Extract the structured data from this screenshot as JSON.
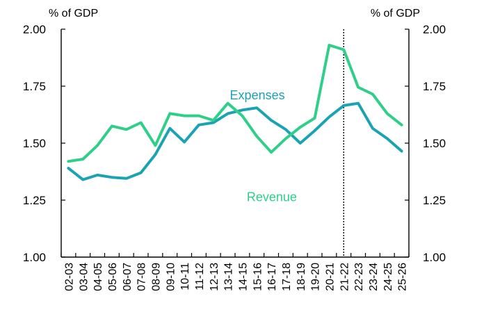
{
  "chart_data": {
    "type": "line",
    "left_axis_unit": "% of GDP",
    "right_axis_unit": "% of GDP",
    "ylim": [
      1.0,
      2.0
    ],
    "yticks": [
      "1.00",
      "1.25",
      "1.50",
      "1.75",
      "2.00"
    ],
    "categories": [
      "02-03",
      "03-04",
      "04-05",
      "05-06",
      "06-07",
      "07-08",
      "08-09",
      "09-10",
      "10-11",
      "11-12",
      "12-13",
      "13-14",
      "14-15",
      "15-16",
      "16-17",
      "17-18",
      "18-19",
      "19-20",
      "20-21",
      "21-22",
      "22-23",
      "23-24",
      "24-25",
      "25-26"
    ],
    "divider_after": "21-22",
    "series": [
      {
        "name": "Expenses",
        "color": "#1aa3b3",
        "values": [
          1.39,
          1.34,
          1.36,
          1.35,
          1.345,
          1.37,
          1.45,
          1.565,
          1.505,
          1.58,
          1.59,
          1.63,
          1.645,
          1.655,
          1.6,
          1.56,
          1.5,
          1.555,
          1.615,
          1.665,
          1.675,
          1.565,
          1.52,
          1.465
        ]
      },
      {
        "name": "Revenue",
        "color": "#2fcf8a",
        "values": [
          1.42,
          1.43,
          1.49,
          1.575,
          1.56,
          1.59,
          1.49,
          1.63,
          1.62,
          1.62,
          1.6,
          1.675,
          1.62,
          1.53,
          1.46,
          1.52,
          1.57,
          1.61,
          1.93,
          1.91,
          1.745,
          1.715,
          1.63,
          1.58
        ]
      }
    ]
  }
}
